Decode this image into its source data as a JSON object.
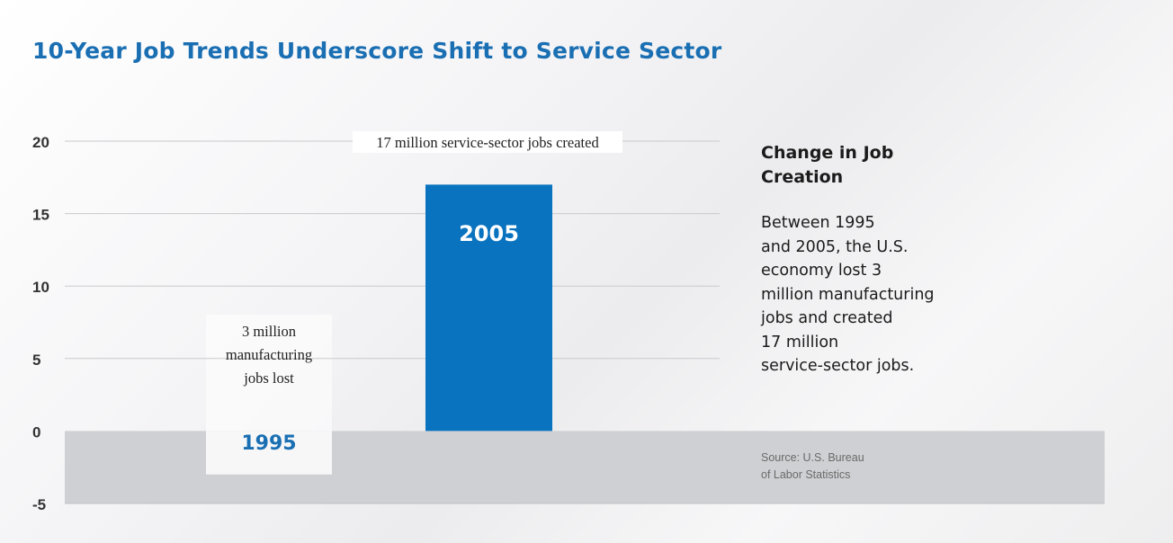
{
  "chart_data": {
    "type": "bar",
    "title": "10-Year Job Trends Underscore Shift to Service Sector",
    "categories": [
      "1995",
      "2005"
    ],
    "values": [
      -3,
      17
    ],
    "ylim": [
      -5,
      20
    ],
    "yticks": [
      20,
      15,
      10,
      5,
      0,
      -5
    ],
    "ytick_labels": [
      "20",
      "15",
      "10",
      "5",
      "0",
      "-5"
    ],
    "grid": true,
    "annotations": [
      {
        "lines": [
          "3 million",
          "manufacturing",
          "jobs lost"
        ]
      },
      {
        "lines": [
          "17 million service-sector jobs created"
        ]
      }
    ],
    "colors": {
      "bar_2005": "#0a73bf",
      "bar_1995": "#f7f7f8",
      "label_1995": "#1a6fb3",
      "label_2005": "#ffffff",
      "negative_band": "#cfd0d3"
    }
  },
  "sidebar": {
    "heading_lines": [
      "Change in Job",
      "Creation"
    ],
    "body_lines": [
      "Between 1995",
      "and 2005, the U.S.",
      "economy lost 3",
      "million manufacturing",
      "jobs and created",
      "17 million",
      "service-sector jobs."
    ]
  },
  "source": {
    "lines": [
      "Source: U.S. Bureau",
      "of Labor Statistics"
    ]
  }
}
